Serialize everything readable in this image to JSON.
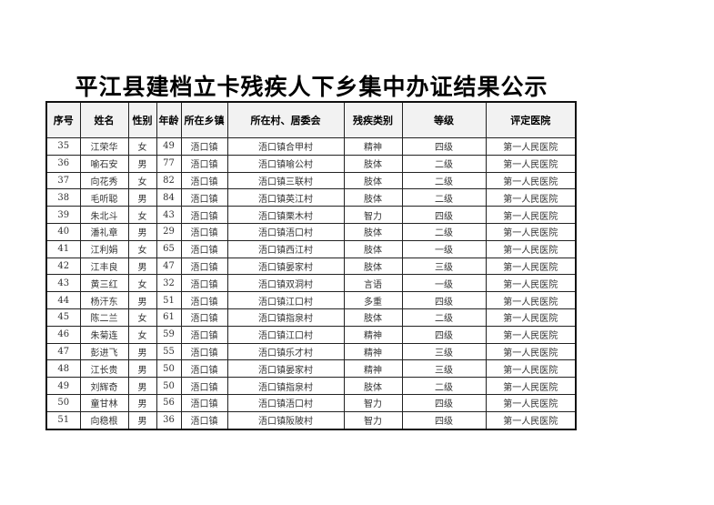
{
  "title": "平江县建档立卡残疾人下乡集中办证结果公示",
  "columns": [
    "序号",
    "姓名",
    "性别",
    "年龄",
    "所在乡镇",
    "所在村、居委会",
    "残疾类别",
    "等级",
    "评定医院"
  ],
  "rows": [
    [
      "35",
      "江荣华",
      "女",
      "49",
      "浯口镇",
      "浯口镇合甲村",
      "精神",
      "四级",
      "第一人民医院"
    ],
    [
      "36",
      "喻石安",
      "男",
      "77",
      "浯口镇",
      "浯口镇喻公村",
      "肢体",
      "二级",
      "第一人民医院"
    ],
    [
      "37",
      "向花秀",
      "女",
      "82",
      "浯口镇",
      "浯口镇三联村",
      "肢体",
      "二级",
      "第一人民医院"
    ],
    [
      "38",
      "毛听聪",
      "男",
      "84",
      "浯口镇",
      "浯口镇英江村",
      "肢体",
      "二级",
      "第一人民医院"
    ],
    [
      "39",
      "朱北斗",
      "女",
      "43",
      "浯口镇",
      "浯口镇栗木村",
      "智力",
      "四级",
      "第一人民医院"
    ],
    [
      "40",
      "潘礼章",
      "男",
      "29",
      "浯口镇",
      "浯口镇浯口村",
      "肢体",
      "二级",
      "第一人民医院"
    ],
    [
      "41",
      "江利娟",
      "女",
      "65",
      "浯口镇",
      "浯口镇西江村",
      "肢体",
      "一级",
      "第一人民医院"
    ],
    [
      "42",
      "江丰良",
      "男",
      "47",
      "浯口镇",
      "浯口镇晏家村",
      "肢体",
      "三级",
      "第一人民医院"
    ],
    [
      "43",
      "黄三红",
      "女",
      "32",
      "浯口镇",
      "浯口镇双洞村",
      "言语",
      "一级",
      "第一人民医院"
    ],
    [
      "44",
      "杨汗东",
      "男",
      "51",
      "浯口镇",
      "浯口镇江口村",
      "多重",
      "四级",
      "第一人民医院"
    ],
    [
      "45",
      "陈二兰",
      "女",
      "61",
      "浯口镇",
      "浯口镇指泉村",
      "肢体",
      "二级",
      "第一人民医院"
    ],
    [
      "46",
      "朱菊连",
      "女",
      "59",
      "浯口镇",
      "浯口镇江口村",
      "精神",
      "四级",
      "第一人民医院"
    ],
    [
      "47",
      "彭进飞",
      "男",
      "55",
      "浯口镇",
      "浯口镇乐才村",
      "精神",
      "三级",
      "第一人民医院"
    ],
    [
      "48",
      "江长贵",
      "男",
      "50",
      "浯口镇",
      "浯口镇晏家村",
      "精神",
      "三级",
      "第一人民医院"
    ],
    [
      "49",
      "刘辉奇",
      "男",
      "50",
      "浯口镇",
      "浯口镇指泉村",
      "肢体",
      "二级",
      "第一人民医院"
    ],
    [
      "50",
      "童甘林",
      "男",
      "56",
      "浯口镇",
      "浯口镇浯口村",
      "智力",
      "四级",
      "第一人民医院"
    ],
    [
      "51",
      "向稳根",
      "男",
      "36",
      "浯口镇",
      "浯口镇阪陂村",
      "智力",
      "四级",
      "第一人民医院"
    ]
  ]
}
